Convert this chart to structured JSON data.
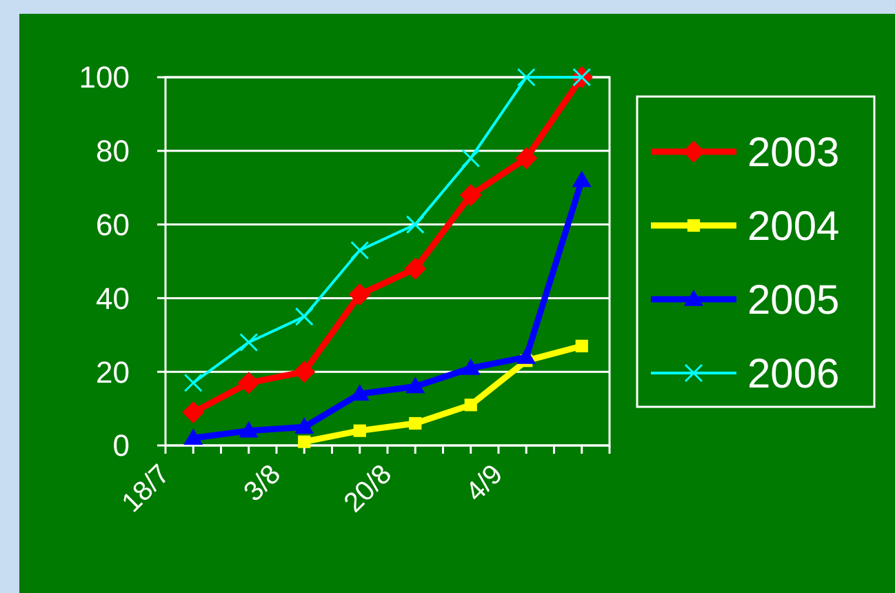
{
  "chart_data": {
    "type": "line",
    "categories": [
      "18/7",
      null,
      null,
      null,
      "3/8",
      null,
      null,
      null,
      "20/8",
      null,
      null,
      null,
      "4/9",
      null,
      null,
      null,
      null
    ],
    "series": [
      {
        "name": "2003",
        "color": "#ff0000",
        "marker": "diamond",
        "values": [
          null,
          9,
          null,
          17,
          null,
          20,
          null,
          41,
          null,
          48,
          null,
          68,
          null,
          78,
          null,
          100,
          null
        ]
      },
      {
        "name": "2004",
        "color": "#ffff00",
        "marker": "square",
        "values": [
          null,
          null,
          null,
          null,
          null,
          1,
          null,
          4,
          null,
          6,
          null,
          11,
          null,
          23,
          null,
          27,
          null
        ]
      },
      {
        "name": "2005",
        "color": "#0000ff",
        "marker": "triangle",
        "values": [
          null,
          2,
          null,
          4,
          null,
          5,
          null,
          14,
          null,
          16,
          null,
          21,
          null,
          24,
          null,
          72,
          null
        ]
      },
      {
        "name": "2006",
        "color": "#00ffff",
        "marker": "cross",
        "values": [
          null,
          17,
          null,
          28,
          null,
          35,
          null,
          53,
          null,
          60,
          null,
          78,
          null,
          100,
          null,
          100,
          null
        ]
      }
    ],
    "ylim": [
      0,
      100
    ],
    "yticks": [
      0,
      20,
      40,
      60,
      80,
      100
    ],
    "grid": "y",
    "legend": "right"
  }
}
